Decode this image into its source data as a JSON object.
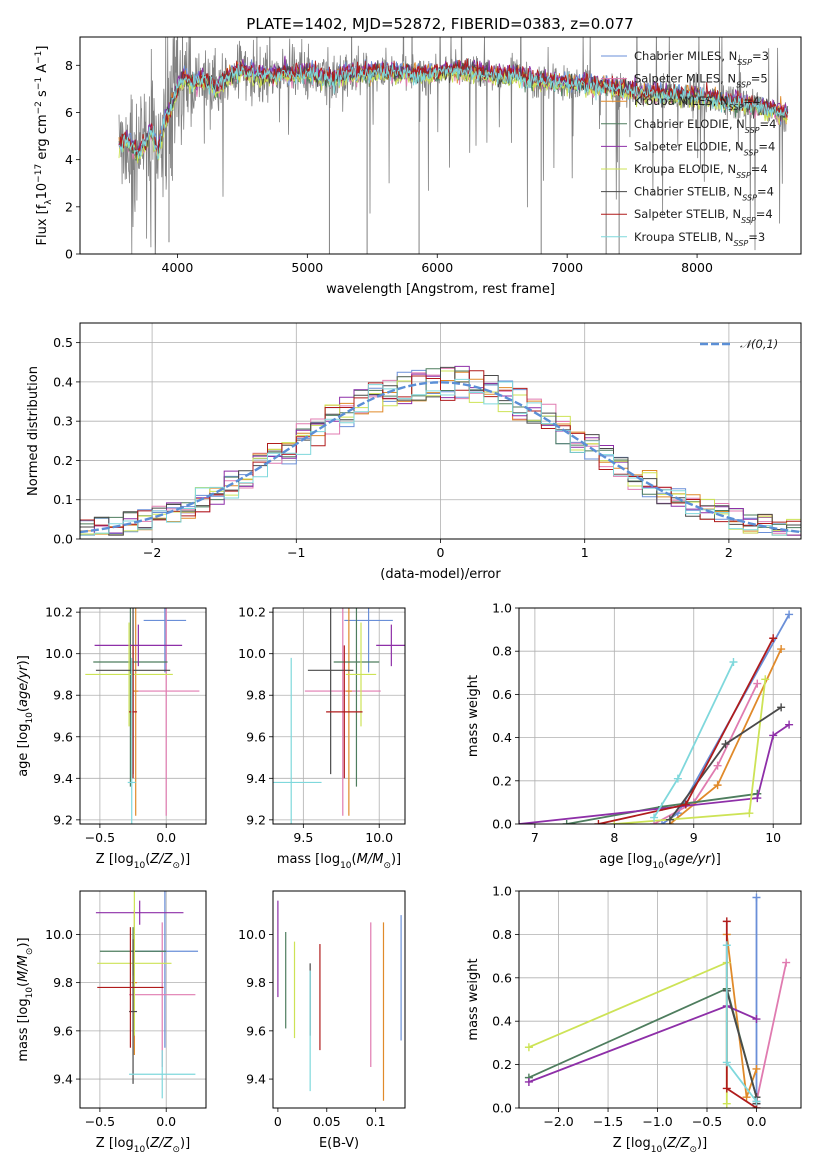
{
  "figure": {
    "title": "PLATE=1402, MJD=52872, FIBERID=0383, z=0.077"
  },
  "models": [
    {
      "name": "Chabrier MILES",
      "nssp": "3",
      "color": "#6a8fd8"
    },
    {
      "name": "Salpeter MILES",
      "nssp": "5",
      "color": "#e07bb0"
    },
    {
      "name": "Kroupa MILES",
      "nssp": "4",
      "color": "#e08a2a"
    },
    {
      "name": "Chabrier ELODIE",
      "nssp": "4",
      "color": "#4e7d5e"
    },
    {
      "name": "Salpeter ELODIE",
      "nssp": "4",
      "color": "#8e2fa8"
    },
    {
      "name": "Kroupa ELODIE",
      "nssp": "4",
      "color": "#cde356"
    },
    {
      "name": "Chabrier STELIB",
      "nssp": "4",
      "color": "#4a4a4a"
    },
    {
      "name": "Salpeter STELIB",
      "nssp": "4",
      "color": "#b01c1c"
    },
    {
      "name": "Kroupa STELIB",
      "nssp": "3",
      "color": "#7fd8dc"
    }
  ],
  "chart_data": [
    {
      "id": "spectrum",
      "type": "line",
      "xlabel": "wavelength [Angstrom, rest frame]",
      "ylabel": "Flux [f_λ10^-17 erg cm^-2 s^-1 A^-1]",
      "xlim": [
        3250,
        8800
      ],
      "ylim": [
        0,
        9.2
      ],
      "xticks": [
        4000,
        5000,
        6000,
        7000,
        8000
      ],
      "yticks": [
        0,
        2,
        4,
        6,
        8
      ],
      "grid": false,
      "legend": "right",
      "data_color": "#808080",
      "continuum": [
        [
          3550,
          4.6
        ],
        [
          3600,
          4.9
        ],
        [
          3700,
          4.2
        ],
        [
          3800,
          5.2
        ],
        [
          3850,
          4.3
        ],
        [
          3900,
          5.6
        ],
        [
          3950,
          6.2
        ],
        [
          4000,
          7.0
        ],
        [
          4050,
          7.5
        ],
        [
          4100,
          7.2
        ],
        [
          4200,
          7.4
        ],
        [
          4300,
          7.0
        ],
        [
          4400,
          7.6
        ],
        [
          4500,
          7.8
        ],
        [
          4600,
          7.6
        ],
        [
          4700,
          7.5
        ],
        [
          4800,
          7.7
        ],
        [
          4900,
          7.6
        ],
        [
          5000,
          7.7
        ],
        [
          5100,
          7.5
        ],
        [
          5200,
          7.4
        ],
        [
          5300,
          7.6
        ],
        [
          5500,
          7.7
        ],
        [
          5700,
          7.7
        ],
        [
          5900,
          7.6
        ],
        [
          6100,
          7.8
        ],
        [
          6300,
          7.7
        ],
        [
          6500,
          7.5
        ],
        [
          6600,
          7.6
        ],
        [
          6700,
          7.4
        ],
        [
          6900,
          7.3
        ],
        [
          7100,
          7.2
        ],
        [
          7300,
          7.1
        ],
        [
          7500,
          6.9
        ],
        [
          7700,
          6.8
        ],
        [
          7900,
          6.7
        ],
        [
          8100,
          6.6
        ],
        [
          8300,
          6.4
        ],
        [
          8500,
          6.2
        ],
        [
          8700,
          5.9
        ]
      ],
      "model_offsets": [
        0.1,
        -0.1,
        0.05,
        -0.05,
        0.12,
        -0.15,
        0.02,
        0.08,
        -0.02
      ],
      "absorption_lines": [
        [
          3935,
          0.5
        ],
        [
          5170,
          0.0
        ],
        [
          5460,
          0.0
        ],
        [
          5860,
          0.0
        ],
        [
          6800,
          0.0
        ],
        [
          7300,
          0.0
        ],
        [
          7400,
          0.0
        ]
      ]
    },
    {
      "id": "residuals",
      "type": "histogram",
      "xlabel": "(data-model)/error",
      "ylabel": "Normed distribution",
      "xlim": [
        -2.5,
        2.5
      ],
      "ylim": [
        0,
        0.55
      ],
      "xticks": [
        -2,
        -1,
        0,
        1,
        2
      ],
      "yticks": [
        0.0,
        0.1,
        0.2,
        0.3,
        0.4,
        0.5
      ],
      "grid": true,
      "legend": "top-right",
      "reference": {
        "name": "𝒩(0,1)",
        "mean": 0,
        "sigma": 1,
        "color": "#5b8fd6"
      },
      "bin_width": 0.1
    },
    {
      "id": "age-vs-z",
      "type": "errorbar",
      "xlabel": "Z [log10(Z/Z⊙)]",
      "ylabel": "age  [log10(age/yr)]",
      "xlim": [
        -0.65,
        0.3
      ],
      "ylim": [
        9.18,
        10.22
      ],
      "xticks": [
        -0.5,
        0.0
      ],
      "yticks": [
        9.2,
        9.4,
        9.6,
        9.8,
        10.0,
        10.2
      ],
      "grid": true,
      "points": [
        {
          "x": -0.01,
          "xerr": 0.16,
          "y": 10.16,
          "yerr": 0.25
        },
        {
          "x": 0.0,
          "xerr": 0.25,
          "y": 9.82,
          "yerr": 0.6
        },
        {
          "x": -0.23,
          "xerr": 0.02,
          "y": 9.82,
          "yerr": 0.6
        },
        {
          "x": -0.27,
          "xerr": 0.28,
          "y": 9.96,
          "yerr": 0.6
        },
        {
          "x": -0.21,
          "xerr": 0.33,
          "y": 10.04,
          "yerr": 0.1
        },
        {
          "x": -0.28,
          "xerr": 0.33,
          "y": 9.9,
          "yerr": 0.25
        },
        {
          "x": -0.25,
          "xerr": 0.28,
          "y": 9.92,
          "yerr": 0.5
        },
        {
          "x": -0.25,
          "xerr": 0.03,
          "y": 9.72,
          "yerr": 0.32
        },
        {
          "x": -0.26,
          "xerr": 0.03,
          "y": 9.38,
          "yerr": 0.6
        }
      ]
    },
    {
      "id": "age-vs-mass",
      "type": "errorbar",
      "xlabel": "mass [log10(M/M⊙)]",
      "ylabel": "",
      "xlim": [
        9.3,
        10.17
      ],
      "ylim": [
        9.18,
        10.22
      ],
      "xticks": [
        9.5,
        10.0
      ],
      "yticks": [
        9.2,
        9.4,
        9.6,
        9.8,
        10.0,
        10.2
      ],
      "grid": true,
      "points": [
        {
          "x": 9.93,
          "xerr": 0.16,
          "y": 10.16,
          "yerr": 0.25
        },
        {
          "x": 9.76,
          "xerr": 0.25,
          "y": 9.82,
          "yerr": 0.6
        },
        {
          "x": 9.8,
          "xerr": 0.02,
          "y": 9.82,
          "yerr": 0.6
        },
        {
          "x": 9.85,
          "xerr": 0.15,
          "y": 9.96,
          "yerr": 0.6
        },
        {
          "x": 10.08,
          "xerr": 0.1,
          "y": 10.04,
          "yerr": 0.1
        },
        {
          "x": 9.88,
          "xerr": 0.1,
          "y": 9.9,
          "yerr": 0.25
        },
        {
          "x": 9.68,
          "xerr": 0.15,
          "y": 9.92,
          "yerr": 0.5
        },
        {
          "x": 9.77,
          "xerr": 0.12,
          "y": 9.72,
          "yerr": 0.32
        },
        {
          "x": 9.42,
          "xerr": 0.2,
          "y": 9.38,
          "yerr": 0.6
        }
      ]
    },
    {
      "id": "weight-vs-age",
      "type": "line",
      "xlabel": "age  [log10(age/yr)]",
      "ylabel": "mass weight",
      "xlim": [
        6.8,
        10.35
      ],
      "ylim": [
        0,
        1.0
      ],
      "xticks": [
        7,
        8,
        9,
        10
      ],
      "yticks": [
        0.0,
        0.2,
        0.4,
        0.6,
        0.8,
        1.0
      ],
      "grid": true,
      "series": [
        {
          "points": [
            [
              8.6,
              0.0
            ],
            [
              8.8,
              0.05
            ],
            [
              10.2,
              0.97
            ]
          ]
        },
        {
          "points": [
            [
              8.5,
              0.0
            ],
            [
              9.0,
              0.1
            ],
            [
              9.3,
              0.27
            ],
            [
              9.8,
              0.65
            ]
          ]
        },
        {
          "points": [
            [
              8.7,
              0.0
            ],
            [
              9.3,
              0.18
            ],
            [
              10.1,
              0.81
            ]
          ]
        },
        {
          "points": [
            [
              7.4,
              0.0
            ],
            [
              8.6,
              0.08
            ],
            [
              9.8,
              0.14
            ]
          ]
        },
        {
          "points": [
            [
              6.8,
              0.0
            ],
            [
              9.8,
              0.12
            ],
            [
              10.0,
              0.41
            ],
            [
              10.2,
              0.46
            ]
          ]
        },
        {
          "points": [
            [
              8.0,
              0.0
            ],
            [
              9.7,
              0.05
            ],
            [
              9.9,
              0.67
            ]
          ]
        },
        {
          "points": [
            [
              8.7,
              0.02
            ],
            [
              9.4,
              0.37
            ],
            [
              10.1,
              0.54
            ]
          ]
        },
        {
          "points": [
            [
              7.8,
              0.0
            ],
            [
              8.9,
              0.09
            ],
            [
              10.0,
              0.86
            ]
          ]
        },
        {
          "points": [
            [
              8.5,
              0.03
            ],
            [
              8.8,
              0.21
            ],
            [
              9.5,
              0.75
            ]
          ]
        }
      ]
    },
    {
      "id": "mass-vs-z",
      "type": "errorbar",
      "xlabel": "Z [log10(Z/Z⊙)]",
      "ylabel": "mass [log10(M/M⊙)]",
      "xlim": [
        -0.65,
        0.3
      ],
      "ylim": [
        9.28,
        10.18
      ],
      "xticks": [
        -0.5,
        0.0
      ],
      "yticks": [
        9.4,
        9.6,
        9.8,
        10.0
      ],
      "grid": true,
      "points": [
        {
          "x": -0.01,
          "xerr": 0.25,
          "y": 9.93,
          "yerr": 0.4
        },
        {
          "x": -0.03,
          "xerr": 0.25,
          "y": 9.75,
          "yerr": 0.3
        },
        {
          "x": -0.24,
          "xerr": 0.02,
          "y": 9.8,
          "yerr": 0.3
        },
        {
          "x": -0.25,
          "xerr": 0.25,
          "y": 9.93,
          "yerr": 0.1
        },
        {
          "x": -0.2,
          "xerr": 0.33,
          "y": 10.09,
          "yerr": 0.05
        },
        {
          "x": -0.24,
          "xerr": 0.28,
          "y": 9.88,
          "yerr": 0.3
        },
        {
          "x": -0.25,
          "xerr": 0.03,
          "y": 9.68,
          "yerr": 0.3
        },
        {
          "x": -0.27,
          "xerr": 0.25,
          "y": 9.78,
          "yerr": 0.25
        },
        {
          "x": -0.03,
          "xerr": 0.25,
          "y": 9.42,
          "yerr": 0.1
        }
      ]
    },
    {
      "id": "mass-vs-ebv",
      "type": "errorbar",
      "xlabel": "E(B-V)",
      "ylabel": "",
      "xlim": [
        -0.005,
        0.13
      ],
      "ylim": [
        9.28,
        10.18
      ],
      "xticks": [
        0.0,
        0.05,
        0.1
      ],
      "yticks": [
        9.4,
        9.6,
        9.8,
        10.0
      ],
      "grid": false,
      "points": [
        {
          "x": 0.126,
          "y": 9.82,
          "yerr": 0.26
        },
        {
          "x": 0.095,
          "y": 9.75,
          "yerr": 0.3
        },
        {
          "x": 0.108,
          "y": 9.68,
          "yerr": 0.37
        },
        {
          "x": 0.008,
          "y": 9.81,
          "yerr": 0.2
        },
        {
          "x": 0.0,
          "y": 9.94,
          "yerr": 0.2
        },
        {
          "x": 0.017,
          "y": 9.77,
          "yerr": 0.2
        },
        {
          "x": 0.033,
          "y": 9.73,
          "yerr": 0.15
        },
        {
          "x": 0.043,
          "y": 9.74,
          "yerr": 0.22
        },
        {
          "x": 0.033,
          "y": 9.6,
          "yerr": 0.25
        }
      ]
    },
    {
      "id": "weight-vs-z",
      "type": "line",
      "xlabel": "Z [log10(Z/Z⊙)]",
      "ylabel": "mass weight",
      "xlim": [
        -2.4,
        0.45
      ],
      "ylim": [
        0,
        1.0
      ],
      "xticks": [
        -2.0,
        -1.5,
        -1.0,
        -0.5,
        0.0
      ],
      "yticks": [
        0.0,
        0.2,
        0.4,
        0.6,
        0.8,
        1.0
      ],
      "grid": true,
      "series": [
        {
          "points": [
            [
              0.0,
              0.97
            ],
            [
              0.0,
              0.02
            ]
          ]
        },
        {
          "points": [
            [
              0.0,
              0.03
            ],
            [
              0.3,
              0.67
            ]
          ]
        },
        {
          "points": [
            [
              -0.3,
              0.8
            ],
            [
              -0.1,
              0.05
            ],
            [
              0.0,
              0.18
            ]
          ]
        },
        {
          "points": [
            [
              -2.3,
              0.14
            ],
            [
              -0.3,
              0.55
            ],
            [
              0.0,
              0.05
            ]
          ]
        },
        {
          "points": [
            [
              -2.3,
              0.12
            ],
            [
              -0.3,
              0.47
            ],
            [
              0.0,
              0.41
            ]
          ]
        },
        {
          "points": [
            [
              -2.3,
              0.28
            ],
            [
              -0.3,
              0.67
            ],
            [
              -0.3,
              0.02
            ]
          ]
        },
        {
          "points": [
            [
              -0.3,
              0.54
            ],
            [
              0.0,
              0.05
            ],
            [
              0.0,
              0.02
            ]
          ]
        },
        {
          "points": [
            [
              -0.3,
              0.86
            ],
            [
              -0.3,
              0.09
            ],
            [
              0.0,
              0.0
            ]
          ]
        },
        {
          "points": [
            [
              -0.3,
              0.75
            ],
            [
              -0.3,
              0.21
            ],
            [
              0.0,
              0.03
            ]
          ]
        }
      ]
    }
  ]
}
